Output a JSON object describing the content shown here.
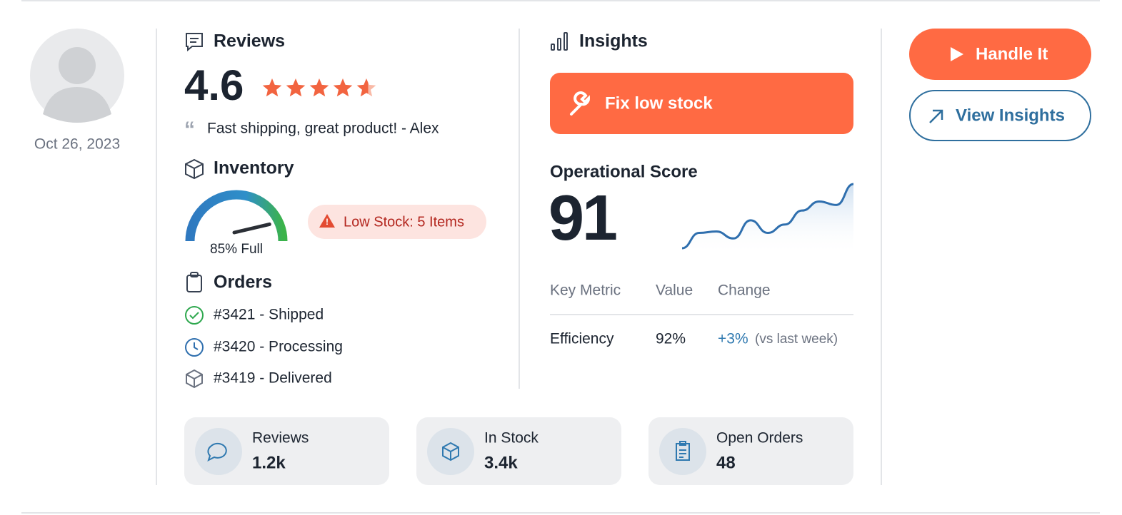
{
  "profile": {
    "date": "Oct 26, 2023"
  },
  "reviews": {
    "title": "Reviews",
    "rating": 4.6,
    "quote": "Fast shipping, great product! - Alex"
  },
  "inventory": {
    "title": "Inventory",
    "gauge": {
      "value": 85,
      "label": "85% Full"
    },
    "alert": "Low Stock: 5 Items"
  },
  "orders": {
    "title": "Orders",
    "items": [
      "#3421 - Shipped",
      "#3420 - Processing",
      "#3419 - Delivered"
    ]
  },
  "insights": {
    "title": "Insights",
    "action": "Fix low stock",
    "score_label": "Operational Score",
    "score": 91,
    "trend": [
      8,
      30,
      32,
      22,
      48,
      30,
      42,
      62,
      75,
      70,
      100
    ],
    "table": {
      "headers": [
        "Key Metric",
        "Value",
        "Change"
      ],
      "row": {
        "metric": "Efficiency",
        "value": "92%",
        "change": "+3%",
        "note": "(vs last week)"
      }
    }
  },
  "buttons": {
    "primary": "Handle It",
    "secondary": "View Insights"
  },
  "stats": [
    {
      "label": "Reviews",
      "value": "1.2k"
    },
    {
      "label": "In Stock",
      "value": "3.4k"
    },
    {
      "label": "Open Orders",
      "value": "48"
    }
  ]
}
